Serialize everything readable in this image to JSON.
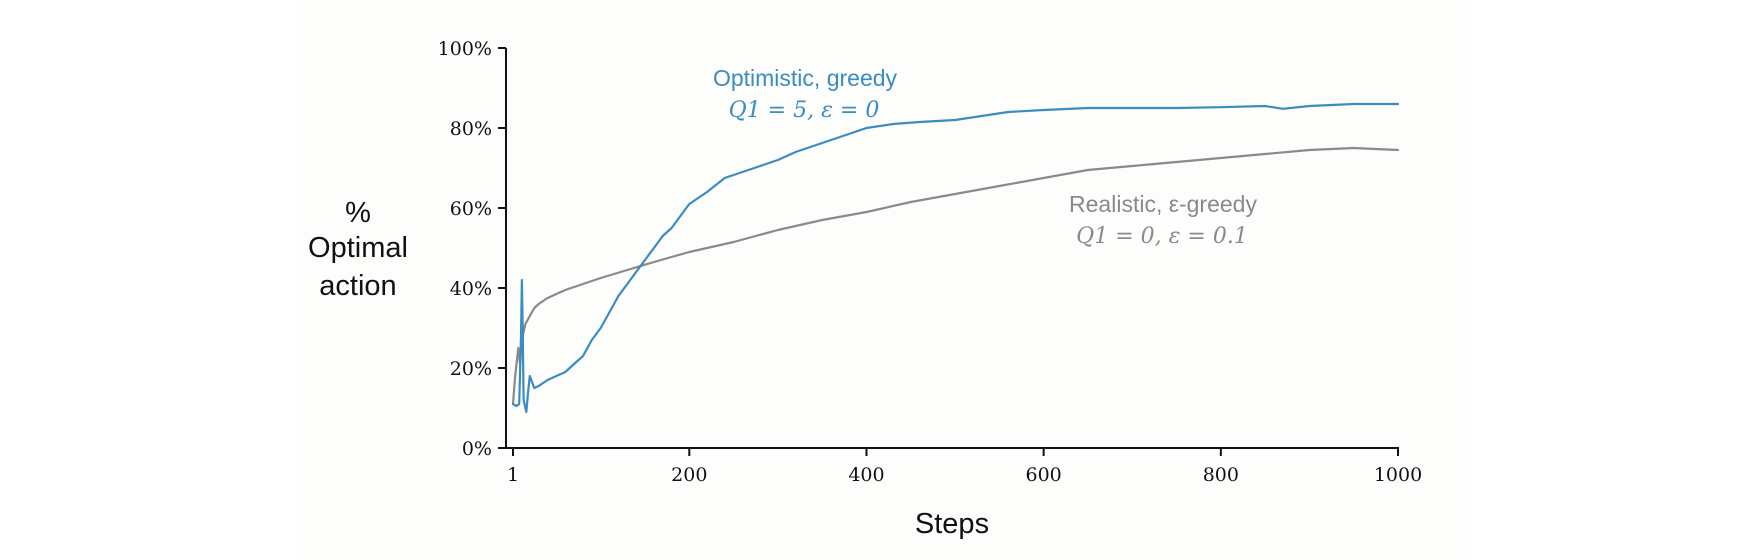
{
  "chart_data": {
    "type": "line",
    "title": "",
    "xlabel": "Steps",
    "ylabel_lines": [
      "%",
      "Optimal",
      "action"
    ],
    "xlim": [
      1,
      1000
    ],
    "ylim": [
      0,
      100
    ],
    "x_ticks": [
      1,
      200,
      400,
      600,
      800,
      1000
    ],
    "x_tick_labels": [
      "1",
      "200",
      "400",
      "600",
      "800",
      "1000"
    ],
    "y_ticks": [
      0,
      20,
      40,
      60,
      80,
      100
    ],
    "y_tick_labels": [
      "0%",
      "20%",
      "40%",
      "60%",
      "80%",
      "100%"
    ],
    "grid": false,
    "legend": "none (direct annotations)",
    "series": [
      {
        "name": "Optimistic, greedy",
        "formula": "Q1 = 5,  ε = 0",
        "color": "#3a8cc1",
        "x": [
          1,
          5,
          8,
          10,
          11,
          12,
          13,
          16,
          18,
          20,
          25,
          30,
          40,
          50,
          60,
          70,
          80,
          90,
          100,
          110,
          120,
          130,
          140,
          150,
          160,
          170,
          180,
          190,
          200,
          220,
          240,
          260,
          280,
          300,
          320,
          340,
          360,
          380,
          400,
          430,
          460,
          500,
          530,
          560,
          600,
          650,
          700,
          750,
          800,
          850,
          870,
          900,
          950,
          1000
        ],
        "y": [
          11,
          10.5,
          11,
          28,
          42,
          30,
          12,
          9,
          14,
          18,
          15,
          15.5,
          17,
          18,
          19,
          21,
          23,
          27,
          30,
          34,
          38,
          41,
          44,
          47,
          50,
          53,
          55,
          58,
          61,
          64,
          67.5,
          69,
          70.5,
          72,
          74,
          75.5,
          77,
          78.5,
          80,
          81,
          81.5,
          82,
          83,
          84,
          84.5,
          85,
          85,
          85,
          85.2,
          85.5,
          84.8,
          85.5,
          86,
          86
        ]
      },
      {
        "name": "Realistic, ε-greedy",
        "formula": "Q1 = 0,  ε = 0.1",
        "color": "#8a8a8a",
        "x": [
          1,
          3,
          5,
          7,
          9,
          11,
          13,
          15,
          20,
          25,
          30,
          40,
          50,
          60,
          80,
          100,
          130,
          160,
          200,
          250,
          300,
          350,
          400,
          450,
          500,
          550,
          600,
          650,
          700,
          750,
          800,
          850,
          900,
          950,
          1000
        ],
        "y": [
          11,
          17,
          21,
          25,
          21,
          27,
          29,
          31,
          33,
          35,
          36,
          37.5,
          38.5,
          39.5,
          41,
          42.5,
          44.5,
          46.5,
          49,
          51.5,
          54.5,
          57,
          59,
          61.5,
          63.5,
          65.5,
          67.5,
          69.5,
          70.5,
          71.5,
          72.5,
          73.5,
          74.5,
          75,
          74.5
        ]
      }
    ],
    "annotations": [
      {
        "series": 0,
        "lines": [
          "Optimistic, greedy",
          "Q1 = 5,  ε = 0"
        ]
      },
      {
        "series": 1,
        "lines": [
          "Realistic, ε-greedy",
          "Q1 = 0,  ε = 0.1"
        ]
      }
    ]
  }
}
